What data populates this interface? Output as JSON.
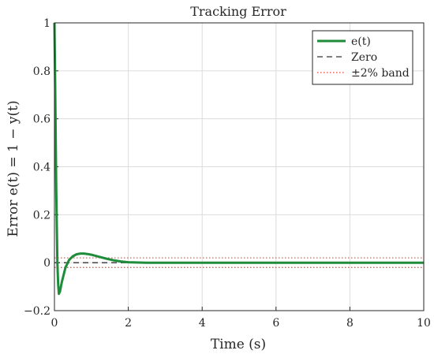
{
  "chart_data": {
    "type": "line",
    "title": "Tracking Error",
    "xlabel": "Time (s)",
    "ylabel": "Error e(t) = 1 − y(t)",
    "xlim": [
      0,
      10
    ],
    "ylim": [
      -0.2,
      1
    ],
    "xticks": [
      0,
      2,
      4,
      6,
      8,
      10
    ],
    "yticks": [
      -0.2,
      0,
      0.2,
      0.4,
      0.6,
      0.8,
      1
    ],
    "xtick_labels": [
      "0",
      "2",
      "4",
      "6",
      "8",
      "10"
    ],
    "ytick_labels": [
      "−0.2",
      "0",
      "0.2",
      "0.4",
      "0.6",
      "0.8",
      "1"
    ],
    "grid": true,
    "legend_position": "top-right",
    "series": [
      {
        "name": "e(t)",
        "color": "#1e8c3a",
        "style": "solid",
        "x": [
          0,
          0.02,
          0.05,
          0.08,
          0.1,
          0.12,
          0.15,
          0.2,
          0.3,
          0.4,
          0.5,
          0.6,
          0.7,
          0.8,
          0.9,
          1.0,
          1.2,
          1.4,
          1.6,
          1.8,
          2.0,
          2.5,
          3.0,
          4.0,
          5.0,
          6.0,
          7.0,
          8.0,
          9.0,
          10.0
        ],
        "y": [
          1.0,
          0.75,
          0.3,
          0.0,
          -0.09,
          -0.13,
          -0.12,
          -0.08,
          -0.02,
          0.012,
          0.027,
          0.035,
          0.038,
          0.038,
          0.036,
          0.033,
          0.025,
          0.017,
          0.01,
          0.005,
          0.002,
          0.0,
          0.0,
          0.0,
          0.0,
          0.0,
          0.0,
          0.0,
          0.0,
          0.0
        ]
      },
      {
        "name": "Zero",
        "color": "#333333",
        "style": "dashed",
        "x": [
          0,
          2
        ],
        "y": [
          0,
          0
        ]
      },
      {
        "name": "±2% band",
        "color": "#e8413b",
        "style": "dotted",
        "x": [
          0,
          10
        ],
        "y": [
          0.02,
          0.02
        ],
        "y2": [
          -0.02,
          -0.02
        ]
      }
    ]
  }
}
